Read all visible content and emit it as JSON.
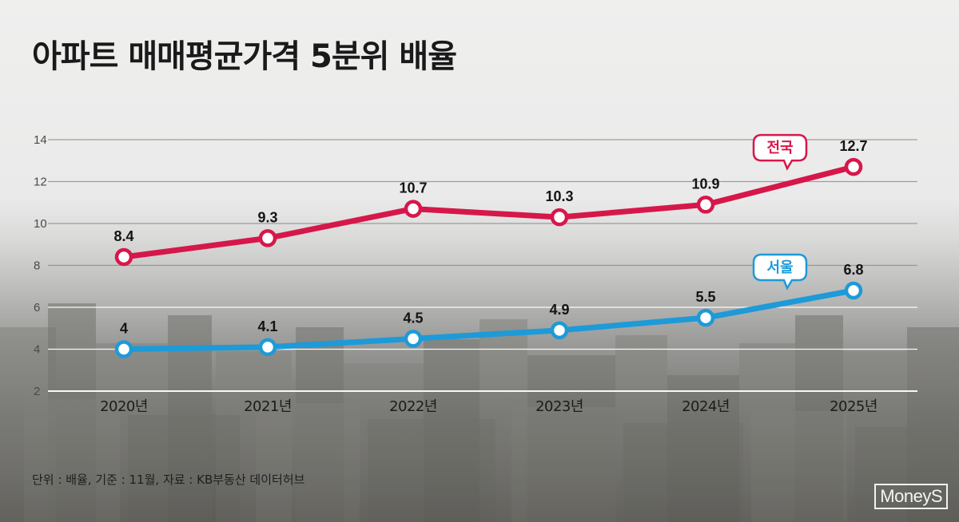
{
  "title": "아파트 매매평균가격 5분위 배율",
  "footnote": "단위 : 배율, 기준 : 11월, 자료 : KB부동산 데이터허브",
  "logo": "MoneyS",
  "chart_data": {
    "type": "line",
    "x": [
      "2020년",
      "2021년",
      "2022년",
      "2023년",
      "2024년",
      "2025년"
    ],
    "ylim": [
      2,
      14
    ],
    "yticks": [
      2,
      4,
      6,
      8,
      10,
      12,
      14
    ],
    "grid": true,
    "series": [
      {
        "name": "전국",
        "color": "#d6174a",
        "values": [
          8.4,
          9.3,
          10.7,
          10.3,
          10.9,
          12.7
        ],
        "labels": [
          "8.4",
          "9.3",
          "10.7",
          "10.3",
          "10.9",
          "12.7"
        ]
      },
      {
        "name": "서울",
        "color": "#1d9ad8",
        "values": [
          4,
          4.1,
          4.5,
          4.9,
          5.5,
          6.8
        ],
        "labels": [
          "4",
          "4.1",
          "4.5",
          "4.9",
          "5.5",
          "6.8"
        ]
      }
    ]
  }
}
